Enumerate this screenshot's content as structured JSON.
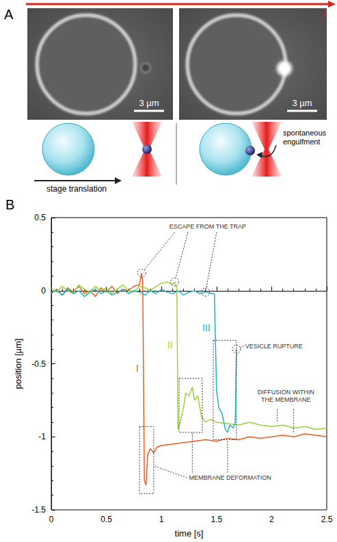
{
  "panel_a": {
    "label": "A",
    "time_arrow": "t",
    "images": [
      {
        "scale_bar": "3 µm"
      },
      {
        "scale_bar": "3 µm"
      }
    ],
    "schematic_left": "stage translation",
    "schematic_right": "spontaneous engulfment"
  },
  "panel_b": {
    "label": "B"
  },
  "chart_data": {
    "type": "line",
    "x_label": "time [s]",
    "y_label": "position [µm]",
    "xlim": [
      0,
      2.5
    ],
    "xticks": [
      0,
      0.5,
      1,
      1.5,
      2,
      2.5
    ],
    "ylim": [
      -1.5,
      0.5
    ],
    "yticks": [
      -1.5,
      -1,
      -0.5,
      0,
      0.5
    ],
    "grid": false,
    "annotations": [
      "ESCAPE FROM THE TRAP",
      "VESICLE RUPTURE",
      "DIFFUSION WITHIN THE MEMBRANE",
      "MEMBRANE DEFORMATION"
    ],
    "series": [
      {
        "name": "I",
        "color": "#ef5a1e",
        "x": [
          0,
          0.05,
          0.1,
          0.15,
          0.2,
          0.25,
          0.3,
          0.35,
          0.4,
          0.45,
          0.5,
          0.55,
          0.6,
          0.65,
          0.7,
          0.75,
          0.8,
          0.82,
          0.83,
          0.845,
          0.86,
          0.875,
          0.9,
          0.93,
          0.96,
          1.0,
          1.1,
          1.2,
          1.3,
          1.4,
          1.5,
          1.6,
          1.7,
          1.8,
          1.9,
          2.0,
          2.1,
          2.2,
          2.3,
          2.4,
          2.5
        ],
        "values": [
          -0.02,
          0.01,
          -0.03,
          0.02,
          -0.01,
          0.03,
          -0.02,
          0.0,
          -0.04,
          0.02,
          -0.01,
          0.03,
          -0.02,
          0.01,
          0.0,
          0.03,
          0.04,
          0.12,
          0.05,
          -1.3,
          -1.33,
          -1.12,
          -1.08,
          -1.11,
          -1.07,
          -1.06,
          -1.05,
          -1.04,
          -1.03,
          -1.02,
          -1.03,
          -1.01,
          -1.02,
          -1.0,
          -1.01,
          -1.0,
          -0.99,
          -1.0,
          -0.98,
          -0.99,
          -1.0
        ]
      },
      {
        "name": "II",
        "color": "#9bd13a",
        "x": [
          0,
          0.05,
          0.1,
          0.15,
          0.2,
          0.25,
          0.3,
          0.35,
          0.4,
          0.45,
          0.5,
          0.55,
          0.6,
          0.65,
          0.7,
          0.75,
          0.8,
          0.85,
          0.9,
          0.95,
          1.0,
          1.05,
          1.1,
          1.12,
          1.14,
          1.15,
          1.17,
          1.2,
          1.22,
          1.25,
          1.28,
          1.3,
          1.33,
          1.36,
          1.38,
          1.4,
          1.45,
          1.5,
          1.6,
          1.7,
          1.8,
          1.9,
          2.0,
          2.1,
          2.2,
          2.3,
          2.4,
          2.5
        ],
        "values": [
          0.02,
          -0.01,
          0.03,
          0.0,
          -0.02,
          0.04,
          0.01,
          -0.01,
          0.03,
          0.0,
          0.02,
          -0.02,
          0.01,
          0.04,
          0.0,
          -0.01,
          0.03,
          0.02,
          0.0,
          0.03,
          0.05,
          0.06,
          0.04,
          0.06,
          0.02,
          -0.95,
          -0.9,
          -0.8,
          -0.7,
          -0.72,
          -0.66,
          -0.75,
          -0.72,
          -0.85,
          -0.88,
          -0.9,
          -0.88,
          -0.9,
          -0.91,
          -0.92,
          -0.9,
          -0.92,
          -0.93,
          -0.92,
          -0.94,
          -0.93,
          -0.95,
          -0.94
        ]
      },
      {
        "name": "III",
        "color": "#1bb3c2",
        "x": [
          0,
          0.05,
          0.1,
          0.15,
          0.2,
          0.25,
          0.3,
          0.35,
          0.4,
          0.45,
          0.5,
          0.55,
          0.6,
          0.65,
          0.7,
          0.75,
          0.8,
          0.85,
          0.9,
          0.95,
          1.0,
          1.05,
          1.1,
          1.15,
          1.2,
          1.25,
          1.3,
          1.35,
          1.4,
          1.45,
          1.48,
          1.5,
          1.52,
          1.55,
          1.58,
          1.6,
          1.62,
          1.65,
          1.67,
          1.68
        ],
        "values": [
          -0.01,
          0.0,
          -0.03,
          0.01,
          -0.02,
          0.0,
          -0.04,
          -0.01,
          0.01,
          -0.02,
          0.0,
          -0.03,
          -0.01,
          0.01,
          -0.02,
          0.0,
          -0.01,
          -0.03,
          0.0,
          -0.02,
          0.01,
          -0.01,
          -0.02,
          0.0,
          -0.03,
          -0.01,
          0.0,
          -0.02,
          -0.01,
          -0.02,
          -0.02,
          -0.68,
          -0.8,
          -0.84,
          -0.95,
          -0.97,
          -0.92,
          -0.94,
          -0.9,
          -0.4
        ]
      }
    ]
  }
}
